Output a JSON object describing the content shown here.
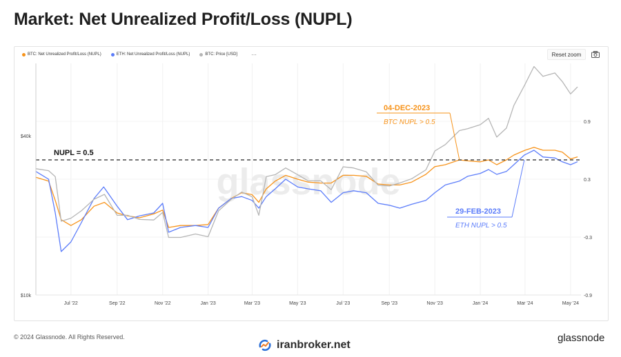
{
  "header": {
    "title": "Market: Net Unrealized Profit/Loss (NUPL)"
  },
  "legend": {
    "items": [
      {
        "label": "BTC: Net Unrealized Profit/Loss (NUPL)",
        "color": "#f7931a"
      },
      {
        "label": "ETH: Net Unrealized Profit/Loss (NUPL)",
        "color": "#5b7cfa"
      },
      {
        "label": "BTC: Price [USD]",
        "color": "#b5b5b5"
      }
    ],
    "more": "···"
  },
  "toolbar": {
    "reset_label": "Reset zoom",
    "camera_icon": "camera-icon"
  },
  "footer": {
    "copyright": "© 2024 Glassnode. All Rights Reserved.",
    "watermark": "iranbroker.net",
    "brand": "glassnode"
  },
  "chart_data": {
    "type": "line",
    "title": "Market: Net Unrealized Profit/Loss (NUPL)",
    "x_ticks": [
      "Jul '22",
      "Sep '22",
      "Nov '22",
      "Jan '23",
      "Mar '23",
      "May '23",
      "Jul '23",
      "Sep '23",
      "Nov '23",
      "Jan '24",
      "Mar '24",
      "May '24"
    ],
    "x_range": [
      "2022-05-15",
      "2024-05-15"
    ],
    "y_left": {
      "ticks": [
        "$10k",
        "$40k"
      ],
      "scale": "log",
      "range": [
        10000,
        75000
      ]
    },
    "y_right": {
      "ticks": [
        "-0.9",
        "-0.3",
        "0.3",
        "0.9"
      ],
      "range": [
        -0.9,
        1.5
      ]
    },
    "reference_line": {
      "label": "NUPL = 0.5",
      "value": 0.5
    },
    "annotations": [
      {
        "date_label": "04-DEC-2023",
        "text": "BTC NUPL > 0.5",
        "color": "#f7931a",
        "x": "2023-12-04",
        "y": 0.5
      },
      {
        "date_label": "29-FEB-2023",
        "text": "ETH NUPL > 0.5",
        "color": "#5b7cfa",
        "x": "2024-02-29",
        "y": 0.5
      }
    ],
    "watermark": "glassnode",
    "series": [
      {
        "name": "BTC: Net Unrealized Profit/Loss (NUPL)",
        "axis": "right",
        "color": "#f7931a",
        "points": [
          [
            "2022-05-15",
            0.32
          ],
          [
            "2022-06-01",
            0.28
          ],
          [
            "2022-06-10",
            0.08
          ],
          [
            "2022-06-18",
            -0.12
          ],
          [
            "2022-07-01",
            -0.18
          ],
          [
            "2022-07-15",
            -0.12
          ],
          [
            "2022-08-01",
            0.02
          ],
          [
            "2022-08-15",
            0.06
          ],
          [
            "2022-09-01",
            -0.05
          ],
          [
            "2022-09-15",
            -0.08
          ],
          [
            "2022-10-01",
            -0.1
          ],
          [
            "2022-10-20",
            -0.06
          ],
          [
            "2022-11-01",
            -0.02
          ],
          [
            "2022-11-09",
            -0.2
          ],
          [
            "2022-11-25",
            -0.18
          ],
          [
            "2022-12-15",
            -0.18
          ],
          [
            "2023-01-01",
            -0.17
          ],
          [
            "2023-01-15",
            0.0
          ],
          [
            "2023-02-01",
            0.1
          ],
          [
            "2023-02-15",
            0.16
          ],
          [
            "2023-03-01",
            0.14
          ],
          [
            "2023-03-10",
            0.06
          ],
          [
            "2023-03-20",
            0.2
          ],
          [
            "2023-04-01",
            0.28
          ],
          [
            "2023-04-15",
            0.34
          ],
          [
            "2023-05-01",
            0.3
          ],
          [
            "2023-05-15",
            0.27
          ],
          [
            "2023-06-01",
            0.26
          ],
          [
            "2023-06-15",
            0.26
          ],
          [
            "2023-07-01",
            0.34
          ],
          [
            "2023-07-15",
            0.34
          ],
          [
            "2023-08-01",
            0.33
          ],
          [
            "2023-08-17",
            0.25
          ],
          [
            "2023-09-01",
            0.24
          ],
          [
            "2023-09-15",
            0.24
          ],
          [
            "2023-10-01",
            0.27
          ],
          [
            "2023-10-20",
            0.35
          ],
          [
            "2023-11-01",
            0.43
          ],
          [
            "2023-11-15",
            0.45
          ],
          [
            "2023-12-04",
            0.5
          ],
          [
            "2023-12-15",
            0.49
          ],
          [
            "2024-01-01",
            0.48
          ],
          [
            "2024-01-12",
            0.5
          ],
          [
            "2024-01-23",
            0.45
          ],
          [
            "2024-02-05",
            0.5
          ],
          [
            "2024-02-15",
            0.55
          ],
          [
            "2024-03-01",
            0.6
          ],
          [
            "2024-03-13",
            0.63
          ],
          [
            "2024-03-25",
            0.6
          ],
          [
            "2024-04-10",
            0.6
          ],
          [
            "2024-04-20",
            0.58
          ],
          [
            "2024-05-01",
            0.51
          ],
          [
            "2024-05-10",
            0.53
          ]
        ]
      },
      {
        "name": "ETH: Net Unrealized Profit/Loss (NUPL)",
        "axis": "right",
        "color": "#5b7cfa",
        "points": [
          [
            "2022-05-15",
            0.38
          ],
          [
            "2022-06-01",
            0.3
          ],
          [
            "2022-06-10",
            -0.05
          ],
          [
            "2022-06-18",
            -0.45
          ],
          [
            "2022-07-01",
            -0.35
          ],
          [
            "2022-07-15",
            -0.15
          ],
          [
            "2022-08-01",
            0.1
          ],
          [
            "2022-08-14",
            0.22
          ],
          [
            "2022-09-01",
            0.02
          ],
          [
            "2022-09-15",
            -0.12
          ],
          [
            "2022-10-01",
            -0.08
          ],
          [
            "2022-10-20",
            -0.05
          ],
          [
            "2022-11-01",
            0.05
          ],
          [
            "2022-11-09",
            -0.25
          ],
          [
            "2022-11-25",
            -0.2
          ],
          [
            "2022-12-15",
            -0.18
          ],
          [
            "2023-01-01",
            -0.2
          ],
          [
            "2023-01-15",
            0.0
          ],
          [
            "2023-02-01",
            0.1
          ],
          [
            "2023-02-15",
            0.12
          ],
          [
            "2023-03-01",
            0.08
          ],
          [
            "2023-03-10",
            0.0
          ],
          [
            "2023-03-20",
            0.12
          ],
          [
            "2023-04-01",
            0.2
          ],
          [
            "2023-04-15",
            0.3
          ],
          [
            "2023-05-01",
            0.22
          ],
          [
            "2023-05-15",
            0.2
          ],
          [
            "2023-06-01",
            0.18
          ],
          [
            "2023-06-15",
            0.06
          ],
          [
            "2023-07-01",
            0.16
          ],
          [
            "2023-07-15",
            0.18
          ],
          [
            "2023-08-01",
            0.16
          ],
          [
            "2023-08-17",
            0.05
          ],
          [
            "2023-09-01",
            0.03
          ],
          [
            "2023-09-15",
            0.0
          ],
          [
            "2023-10-01",
            0.04
          ],
          [
            "2023-10-20",
            0.08
          ],
          [
            "2023-11-01",
            0.16
          ],
          [
            "2023-11-15",
            0.24
          ],
          [
            "2023-12-04",
            0.28
          ],
          [
            "2023-12-15",
            0.33
          ],
          [
            "2024-01-01",
            0.36
          ],
          [
            "2024-01-12",
            0.4
          ],
          [
            "2024-01-23",
            0.35
          ],
          [
            "2024-02-05",
            0.38
          ],
          [
            "2024-02-15",
            0.45
          ],
          [
            "2024-02-29",
            0.55
          ],
          [
            "2024-03-13",
            0.6
          ],
          [
            "2024-03-25",
            0.53
          ],
          [
            "2024-04-10",
            0.52
          ],
          [
            "2024-04-20",
            0.48
          ],
          [
            "2024-05-01",
            0.45
          ],
          [
            "2024-05-10",
            0.48
          ]
        ]
      },
      {
        "name": "BTC: Price [USD]",
        "axis": "left",
        "color": "#b5b5b5",
        "points": [
          [
            "2022-05-15",
            30000
          ],
          [
            "2022-06-01",
            29500
          ],
          [
            "2022-06-10",
            28000
          ],
          [
            "2022-06-18",
            19000
          ],
          [
            "2022-07-01",
            19500
          ],
          [
            "2022-07-15",
            20800
          ],
          [
            "2022-08-01",
            23000
          ],
          [
            "2022-08-15",
            24000
          ],
          [
            "2022-09-01",
            20000
          ],
          [
            "2022-09-15",
            20000
          ],
          [
            "2022-10-01",
            19300
          ],
          [
            "2022-10-20",
            19200
          ],
          [
            "2022-11-01",
            20500
          ],
          [
            "2022-11-09",
            16500
          ],
          [
            "2022-11-25",
            16500
          ],
          [
            "2022-12-15",
            17000
          ],
          [
            "2023-01-01",
            16600
          ],
          [
            "2023-01-15",
            20800
          ],
          [
            "2023-02-01",
            23000
          ],
          [
            "2023-02-15",
            24500
          ],
          [
            "2023-03-01",
            23500
          ],
          [
            "2023-03-10",
            20000
          ],
          [
            "2023-03-20",
            28000
          ],
          [
            "2023-04-01",
            28500
          ],
          [
            "2023-04-15",
            30200
          ],
          [
            "2023-05-01",
            28500
          ],
          [
            "2023-05-15",
            27000
          ],
          [
            "2023-06-01",
            27000
          ],
          [
            "2023-06-15",
            25000
          ],
          [
            "2023-07-01",
            30500
          ],
          [
            "2023-07-15",
            30200
          ],
          [
            "2023-08-01",
            29200
          ],
          [
            "2023-08-17",
            26000
          ],
          [
            "2023-09-01",
            25800
          ],
          [
            "2023-09-15",
            26500
          ],
          [
            "2023-10-01",
            27500
          ],
          [
            "2023-10-20",
            29700
          ],
          [
            "2023-11-01",
            35000
          ],
          [
            "2023-11-15",
            37000
          ],
          [
            "2023-12-04",
            41800
          ],
          [
            "2023-12-15",
            42500
          ],
          [
            "2024-01-01",
            44000
          ],
          [
            "2024-01-12",
            46500
          ],
          [
            "2024-01-23",
            39500
          ],
          [
            "2024-02-05",
            42700
          ],
          [
            "2024-02-15",
            52000
          ],
          [
            "2024-03-01",
            62500
          ],
          [
            "2024-03-13",
            73000
          ],
          [
            "2024-03-25",
            67000
          ],
          [
            "2024-04-10",
            69000
          ],
          [
            "2024-04-20",
            64000
          ],
          [
            "2024-05-01",
            57500
          ],
          [
            "2024-05-10",
            61000
          ]
        ]
      }
    ]
  }
}
